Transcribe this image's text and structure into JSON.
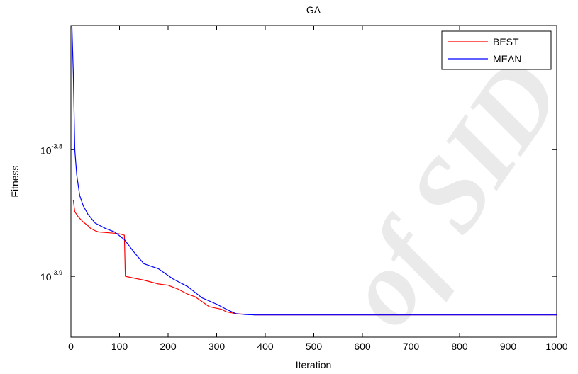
{
  "watermark": "of SID",
  "chart_data": {
    "type": "line",
    "title": "GA",
    "xlabel": "Iteration",
    "ylabel": "Fitness",
    "xlim": [
      0,
      1000
    ],
    "ylim_log10": [
      -3.948,
      -3.702
    ],
    "yscale": "log",
    "xticks": [
      0,
      100,
      200,
      300,
      400,
      500,
      600,
      700,
      800,
      900,
      1000
    ],
    "yticks": [
      {
        "base": "10",
        "exponent": "-3.8",
        "value": -3.8
      },
      {
        "base": "10",
        "exponent": "-3.9",
        "value": -3.9
      }
    ],
    "grid": false,
    "legend": {
      "position": "top-right"
    },
    "series": [
      {
        "name": "BEST",
        "color": "#ff0000",
        "x": [
          5,
          8,
          15,
          25,
          35,
          40,
          50,
          57,
          90,
          100,
          110,
          112,
          150,
          180,
          200,
          220,
          240,
          255,
          270,
          285,
          310,
          320,
          340,
          360,
          380,
          1000
        ],
        "y_log10": [
          -3.84,
          -3.849,
          -3.853,
          -3.857,
          -3.86,
          -3.862,
          -3.864,
          -3.865,
          -3.866,
          -3.8665,
          -3.8675,
          -3.9,
          -3.903,
          -3.906,
          -3.907,
          -3.91,
          -3.914,
          -3.916,
          -3.92,
          -3.924,
          -3.926,
          -3.928,
          -3.9295,
          -3.93,
          -3.9305,
          -3.9305
        ]
      },
      {
        "name": "MEAN",
        "color": "#0000ff",
        "x": [
          2,
          5,
          8,
          12,
          18,
          25,
          35,
          50,
          70,
          90,
          110,
          130,
          150,
          180,
          210,
          240,
          270,
          300,
          320,
          340,
          360,
          380,
          1000
        ],
        "y_log10": [
          -3.702,
          -3.74,
          -3.8,
          -3.82,
          -3.836,
          -3.844,
          -3.851,
          -3.858,
          -3.862,
          -3.865,
          -3.871,
          -3.881,
          -3.89,
          -3.894,
          -3.902,
          -3.908,
          -3.917,
          -3.922,
          -3.926,
          -3.9295,
          -3.9302,
          -3.9305,
          -3.9305
        ]
      }
    ]
  }
}
